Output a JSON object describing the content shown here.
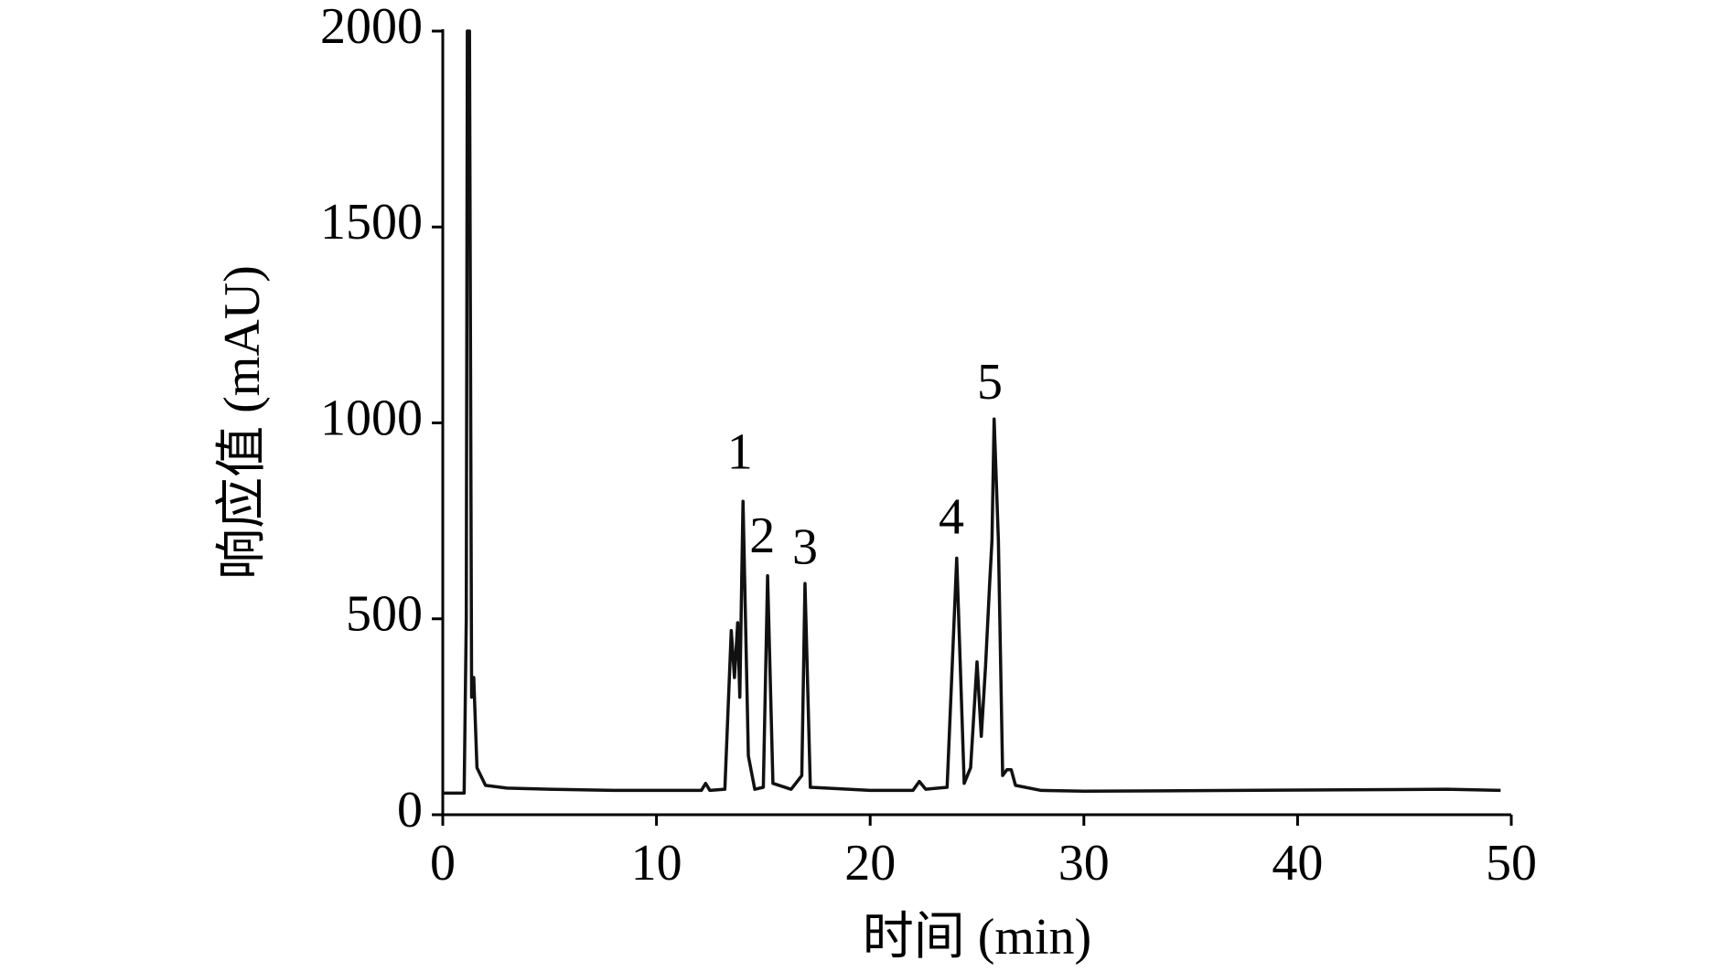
{
  "chart_data": {
    "type": "line",
    "xlabel": "时间 (min)",
    "ylabel": "响应值 (mAU)",
    "xlim": [
      0,
      50
    ],
    "xticks": [
      0,
      10,
      20,
      30,
      40,
      50
    ],
    "ylim": [
      0,
      2000
    ],
    "yticks": [
      0,
      500,
      1000,
      1500,
      2000
    ],
    "grid": false,
    "series": [
      {
        "color": "#111111",
        "x": [
          0,
          1.0,
          1.1,
          1.15,
          1.25,
          1.35,
          1.45,
          1.6,
          2,
          3,
          5,
          8,
          11,
          12.1,
          12.3,
          12.5,
          13.2,
          13.5,
          13.65,
          13.8,
          13.9,
          14.05,
          14.3,
          14.6,
          15.0,
          15.2,
          15.45,
          16.3,
          16.8,
          16.95,
          17.2,
          20,
          22,
          22.3,
          22.6,
          23.6,
          24.05,
          24.4,
          24.7,
          25.0,
          25.2,
          25.4,
          25.6,
          25.7,
          25.8,
          26.0,
          26.2,
          26.4,
          26.6,
          26.8,
          28,
          30,
          47,
          49.5
        ],
        "values": [
          55,
          55,
          500,
          2000,
          2000,
          300,
          350,
          120,
          75,
          68,
          65,
          62,
          62,
          62,
          80,
          62,
          65,
          470,
          350,
          490,
          300,
          800,
          150,
          65,
          70,
          610,
          80,
          65,
          100,
          590,
          70,
          62,
          62,
          85,
          65,
          70,
          655,
          80,
          120,
          390,
          200,
          380,
          600,
          700,
          1010,
          700,
          100,
          115,
          115,
          75,
          62,
          60,
          65,
          62
        ]
      }
    ],
    "annotations": [
      {
        "text": "1",
        "x": 13.9,
        "y": 913
      },
      {
        "text": "2",
        "x": 14.95,
        "y": 700
      },
      {
        "text": "3",
        "x": 16.95,
        "y": 670
      },
      {
        "text": "4",
        "x": 23.8,
        "y": 748
      },
      {
        "text": "5",
        "x": 25.6,
        "y": 1092
      }
    ]
  }
}
